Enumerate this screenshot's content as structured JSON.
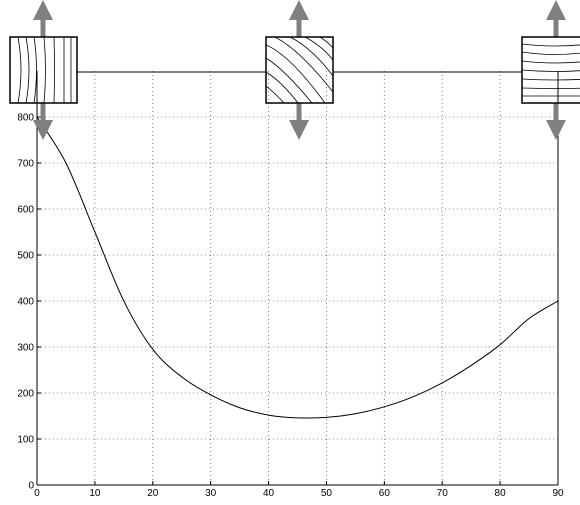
{
  "chart_data": {
    "type": "line",
    "x": [
      0,
      5,
      10,
      15,
      20,
      25,
      30,
      35,
      40,
      45,
      50,
      55,
      60,
      65,
      70,
      75,
      80,
      85,
      90
    ],
    "series": [
      {
        "color": "#000000",
        "values": [
          800,
          700,
          550,
          400,
          295,
          235,
          196,
          168,
          152,
          146,
          147,
          155,
          170,
          192,
          222,
          260,
          305,
          362,
          400
        ]
      }
    ],
    "xlim": [
      0,
      90
    ],
    "xticks": [
      0,
      10,
      20,
      30,
      40,
      50,
      60,
      70,
      80,
      90
    ],
    "ylim": [
      0,
      900
    ],
    "yticks": [
      0,
      100,
      200,
      300,
      400,
      500,
      600,
      700,
      800
    ],
    "grid": true
  }
}
